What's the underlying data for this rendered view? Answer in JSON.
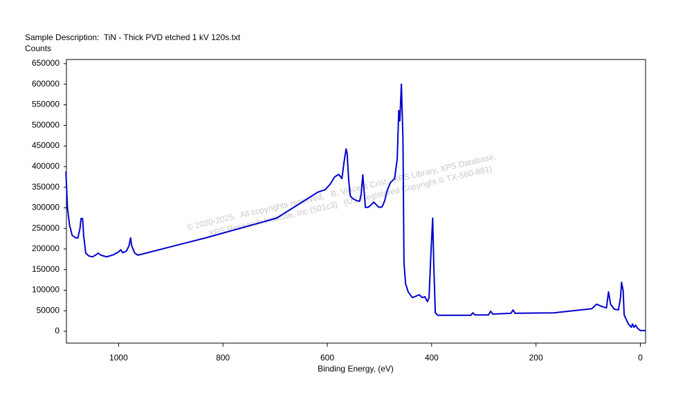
{
  "chart_data": {
    "type": "line",
    "title": "Sample Description:  TiN - Thick PVD etched 1 kV 120s.txt",
    "y_label": "Counts",
    "x_label": "Binding Energy, (eV)",
    "annotations": [
      "© 2020-2025,  All copyrights reserved,   B. Vincent Crist,  XPS Library, XPS Database,",
      "XPS Research Institute, Inc (501c3)   (US Registered Copyright © TX-560-881)"
    ],
    "xlim": [
      1100,
      -10
    ],
    "ylim": [
      -28500,
      660000
    ],
    "xticks": [
      1000,
      800,
      600,
      400,
      200,
      0
    ],
    "yticks": [
      0,
      50000,
      100000,
      150000,
      200000,
      250000,
      300000,
      350000,
      400000,
      450000,
      500000,
      550000,
      600000,
      650000
    ],
    "x": [
      1101,
      1098,
      1094,
      1089,
      1082,
      1078,
      1074,
      1072,
      1069,
      1067,
      1063,
      1057,
      1050,
      1043,
      1039,
      1034,
      1023,
      1010,
      1000,
      996,
      992,
      985,
      980,
      977,
      975,
      969,
      963,
      830,
      697,
      618,
      604,
      594,
      586,
      578,
      572,
      568,
      564,
      562,
      559,
      556,
      551,
      543,
      538,
      535,
      532,
      529,
      527,
      522,
      517,
      511,
      506,
      501,
      495,
      490,
      485,
      479,
      471,
      466,
      463,
      461,
      458,
      455,
      453,
      450,
      445,
      437,
      429,
      424,
      418,
      413,
      408,
      405,
      401,
      398,
      396,
      393,
      388,
      325,
      321,
      317,
      291,
      287,
      283,
      248,
      244,
      240,
      166,
      93,
      84,
      73,
      65,
      61,
      57,
      50,
      42,
      38,
      36,
      33,
      31,
      23,
      17,
      15,
      12,
      9,
      5,
      0,
      -10
    ],
    "series": [
      {
        "name": "TiN",
        "color": "#0000cc",
        "values": [
          388000,
          300000,
          258000,
          233000,
          227000,
          227000,
          250000,
          274000,
          274000,
          233000,
          190000,
          183000,
          181000,
          186000,
          190000,
          185000,
          181000,
          186000,
          193000,
          198000,
          191000,
          195000,
          208000,
          227000,
          208000,
          190000,
          185000,
          228000,
          275000,
          338000,
          344000,
          358000,
          375000,
          381000,
          371000,
          410000,
          443000,
          432000,
          368000,
          329000,
          322000,
          317000,
          316000,
          334000,
          380000,
          334000,
          301000,
          301000,
          306000,
          314000,
          307000,
          301000,
          302000,
          317000,
          343000,
          361000,
          371000,
          418000,
          536000,
          511000,
          600000,
          469000,
          166000,
          116000,
          96000,
          82000,
          86000,
          89000,
          82000,
          84000,
          72000,
          82000,
          200000,
          275000,
          166000,
          45000,
          39000,
          39000,
          45000,
          40000,
          40000,
          49000,
          42000,
          44000,
          52000,
          44000,
          45000,
          55000,
          66000,
          60000,
          57000,
          96000,
          66000,
          54000,
          52000,
          82000,
          119000,
          99000,
          40000,
          18000,
          10000,
          18000,
          10000,
          15000,
          7000,
          2000,
          2000
        ]
      }
    ]
  }
}
